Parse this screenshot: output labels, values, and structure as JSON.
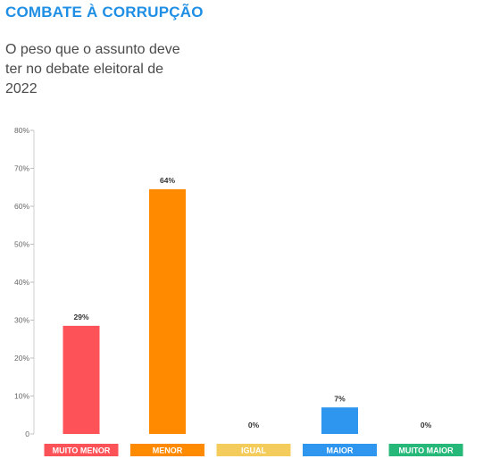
{
  "header": {
    "title": "COMBATE À CORRUPÇÃO",
    "subtitle": "O peso que o assunto deve ter no debate eleitoral de 2022"
  },
  "chart_data": {
    "type": "bar",
    "categories": [
      "MUITO MENOR",
      "MENOR",
      "IGUAL",
      "MAIOR",
      "MUITO MAIOR"
    ],
    "values": [
      28.5,
      64.5,
      0,
      7,
      0
    ],
    "data_labels": [
      "29%",
      "64%",
      "0%",
      "7%",
      "0%"
    ],
    "colors": [
      "#fd5257",
      "#ff8a00",
      "#f4cc5c",
      "#2e96ee",
      "#25b879"
    ],
    "ylim": [
      0,
      80
    ],
    "yticks": [
      0,
      10,
      20,
      30,
      40,
      50,
      60,
      70,
      80
    ],
    "ytick_labels": [
      "0",
      "10%",
      "20%",
      "30%",
      "40%",
      "50%",
      "60%",
      "70%",
      "80%"
    ],
    "grid": false,
    "legend": "none",
    "title": "",
    "xlabel": "",
    "ylabel": ""
  }
}
